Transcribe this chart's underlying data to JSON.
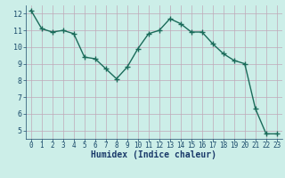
{
  "x": [
    0,
    1,
    2,
    3,
    4,
    5,
    6,
    7,
    8,
    9,
    10,
    11,
    12,
    13,
    14,
    15,
    16,
    17,
    18,
    19,
    20,
    21,
    22,
    23
  ],
  "y": [
    12.2,
    11.1,
    10.9,
    11.0,
    10.8,
    9.4,
    9.3,
    8.7,
    8.1,
    8.8,
    9.9,
    10.8,
    11.0,
    11.7,
    11.4,
    10.9,
    10.9,
    10.2,
    9.6,
    9.2,
    9.0,
    6.3,
    4.8,
    4.8
  ],
  "xlabel": "Humidex (Indice chaleur)",
  "xlim": [
    -0.5,
    23.5
  ],
  "ylim": [
    4.5,
    12.5
  ],
  "yticks": [
    5,
    6,
    7,
    8,
    9,
    10,
    11,
    12
  ],
  "xticks": [
    0,
    1,
    2,
    3,
    4,
    5,
    6,
    7,
    8,
    9,
    10,
    11,
    12,
    13,
    14,
    15,
    16,
    17,
    18,
    19,
    20,
    21,
    22,
    23
  ],
  "line_color": "#1a6b5a",
  "marker": "+",
  "bg_color": "#cceee8",
  "grid_color": "#c0a8b8",
  "tick_color": "#1a4a6a",
  "label_color": "#1a3a6a",
  "marker_size": 4,
  "line_width": 1.0
}
